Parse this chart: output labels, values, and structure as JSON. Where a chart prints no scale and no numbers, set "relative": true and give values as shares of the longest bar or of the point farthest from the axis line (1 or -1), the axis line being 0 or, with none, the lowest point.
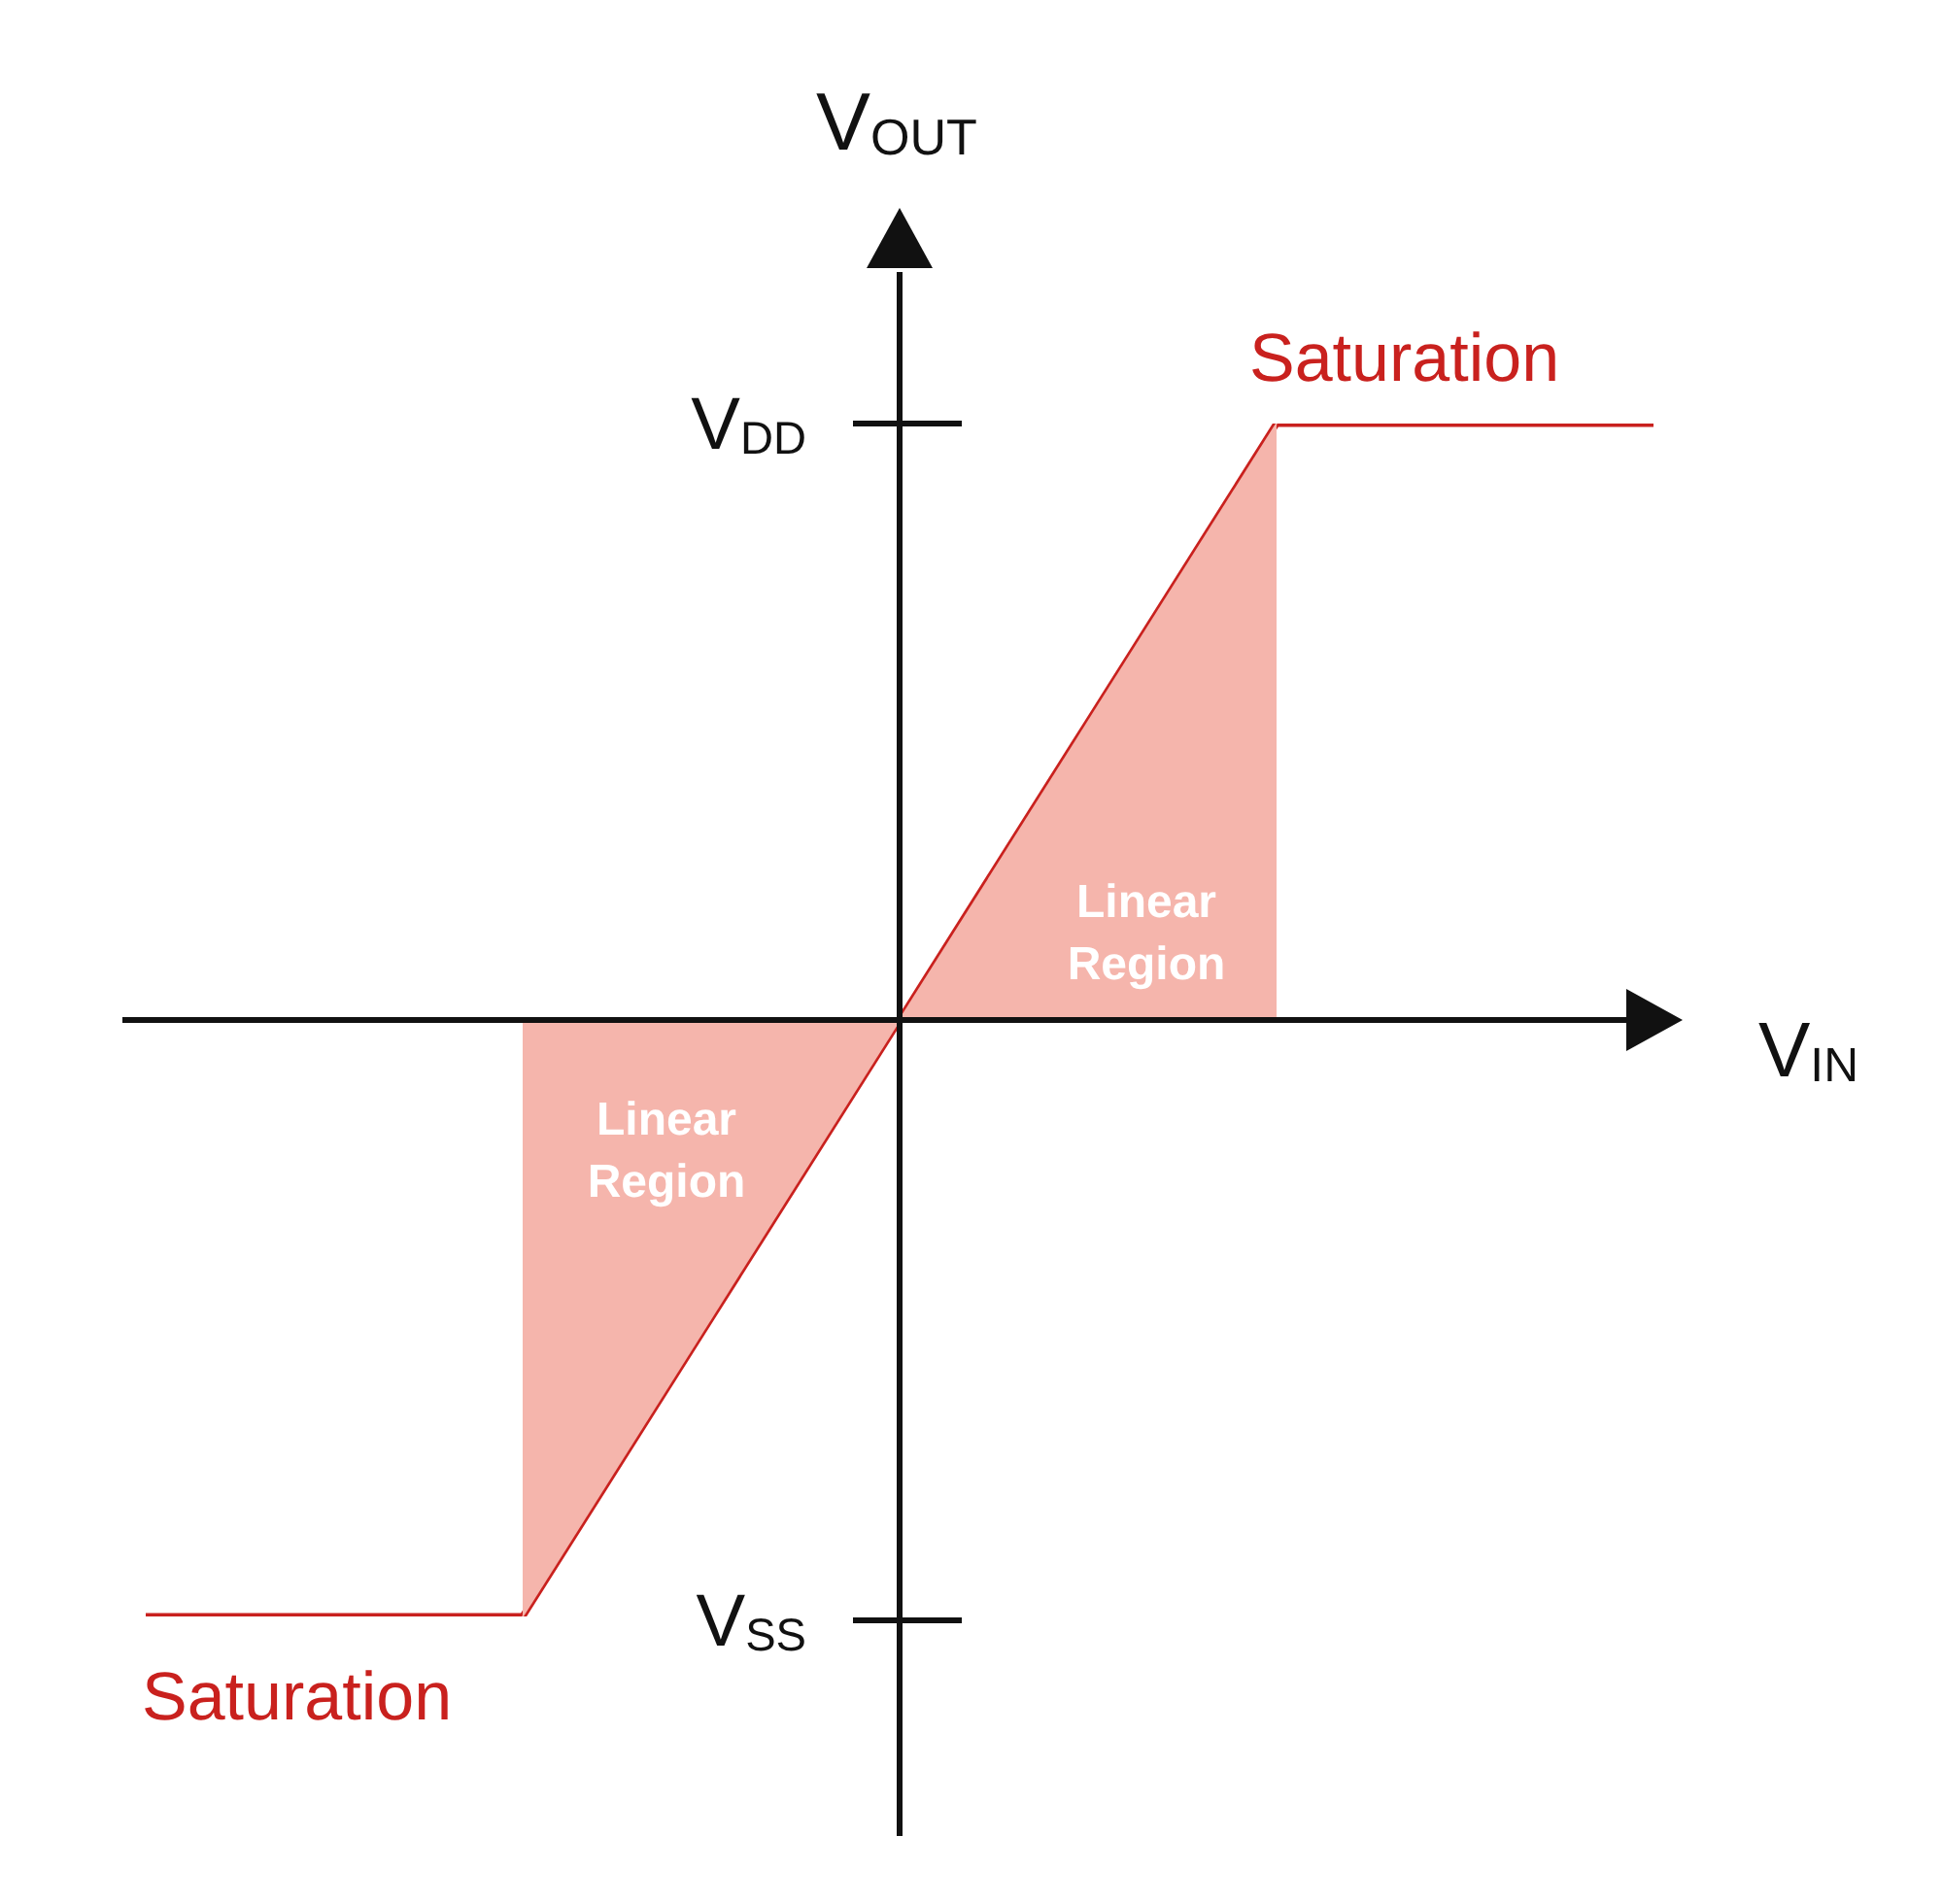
{
  "chart_data": {
    "type": "line",
    "relative": true,
    "xlabel": "V$_{IN}$",
    "ylabel": "V$_{OUT}$",
    "categories": [
      null,
      null,
      null,
      null,
      null,
      null,
      null,
      null,
      null
    ],
    "series": [
      {
        "type": "area",
        "color": "#f5b5ac",
        "values": [
          null,
          null,
          -1,
          -0.5,
          0,
          null,
          null,
          null,
          null
        ]
      },
      {
        "type": "area",
        "color": "#f5b5ac",
        "values": [
          null,
          null,
          null,
          null,
          0,
          0.5,
          1,
          null,
          null
        ]
      },
      {
        "color": "#c9211e",
        "values": [
          -1,
          -1,
          -1,
          -0.5,
          0,
          0.5,
          1,
          1,
          1
        ]
      }
    ],
    "annotations": [
      "V$_{DD}$",
      "V$_{SS}$",
      {
        "text": "Saturation",
        "y": 1
      },
      {
        "text": "Saturation",
        "y": -1
      },
      "Linear Region",
      "Linear Region"
    ]
  }
}
